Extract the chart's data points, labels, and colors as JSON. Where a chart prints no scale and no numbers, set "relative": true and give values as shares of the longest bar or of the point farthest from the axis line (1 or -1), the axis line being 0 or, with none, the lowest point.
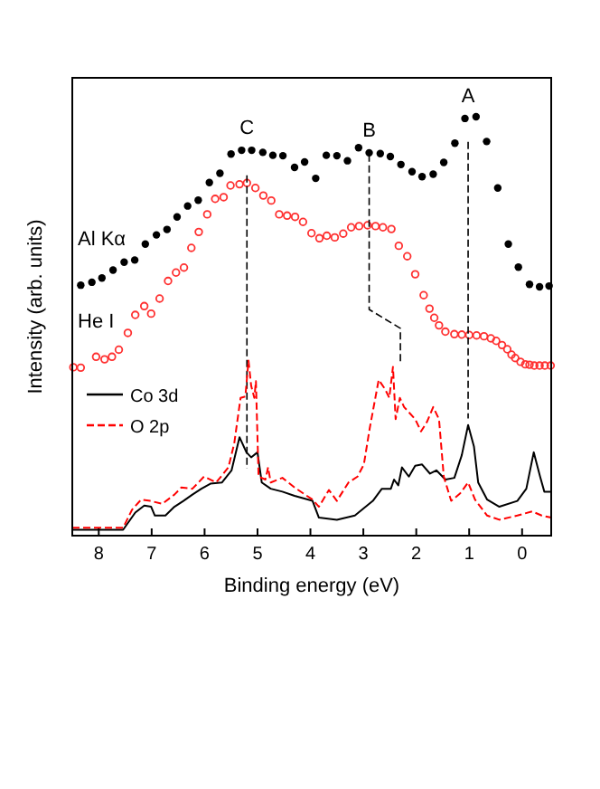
{
  "chart_data": {
    "type": "line",
    "relative": true,
    "xlabel": "Binding energy (eV)",
    "ylabel": "Intensity (arb. units)",
    "xlim": [
      8.5,
      -0.55
    ],
    "xticks": [
      8,
      7,
      6,
      5,
      4,
      3,
      2,
      1,
      0
    ],
    "legend": "left",
    "grid": false,
    "annotations": [
      "C",
      "B",
      "A"
    ],
    "series": [
      {
        "name": "Al Kα",
        "type": "scatter",
        "marker": "circle",
        "color": "#000000",
        "x": [
          8.34,
          8.13,
          7.94,
          7.73,
          7.52,
          7.32,
          7.12,
          6.91,
          6.71,
          6.52,
          6.32,
          6.12,
          5.91,
          5.71,
          5.5,
          5.3,
          5.11,
          4.9,
          4.71,
          4.52,
          4.3,
          4.11,
          3.9,
          3.7,
          3.5,
          3.3,
          3.09,
          2.89,
          2.68,
          2.49,
          2.29,
          2.08,
          1.89,
          1.68,
          1.48,
          1.27,
          1.08,
          0.87,
          0.67,
          0.46,
          0.26,
          0.07,
          -0.14,
          -0.33,
          -0.51
        ],
        "values": [
          0.598,
          0.605,
          0.615,
          0.634,
          0.653,
          0.658,
          0.696,
          0.718,
          0.731,
          0.761,
          0.787,
          0.801,
          0.843,
          0.865,
          0.911,
          0.92,
          0.92,
          0.915,
          0.908,
          0.907,
          0.879,
          0.892,
          0.853,
          0.908,
          0.907,
          0.895,
          0.926,
          0.914,
          0.912,
          0.905,
          0.886,
          0.869,
          0.857,
          0.863,
          0.891,
          0.937,
          0.996,
          1.0,
          0.941,
          0.83,
          0.696,
          0.641,
          0.6,
          0.594,
          0.596
        ]
      },
      {
        "name": "He I",
        "type": "scatter",
        "marker": "circle",
        "color": "#ff3030",
        "x": [
          8.48,
          8.34,
          8.05,
          7.89,
          7.75,
          7.62,
          7.45,
          7.31,
          7.14,
          7.01,
          6.85,
          6.69,
          6.54,
          6.39,
          6.25,
          6.11,
          5.95,
          5.8,
          5.64,
          5.51,
          5.34,
          5.2,
          5.04,
          4.89,
          4.74,
          4.59,
          4.44,
          4.29,
          4.14,
          3.98,
          3.83,
          3.69,
          3.54,
          3.38,
          3.23,
          3.08,
          2.92,
          2.77,
          2.63,
          2.47,
          2.33,
          2.17,
          2.02,
          1.86,
          1.75,
          1.66,
          1.57,
          1.45,
          1.28,
          1.14,
          1.0,
          0.86,
          0.72,
          0.59,
          0.49,
          0.38,
          0.28,
          0.2,
          0.13,
          0.03,
          -0.06,
          -0.14,
          -0.23,
          -0.33,
          -0.43,
          -0.54
        ],
        "values": [
          0.402,
          0.401,
          0.427,
          0.421,
          0.427,
          0.444,
          0.484,
          0.527,
          0.548,
          0.53,
          0.566,
          0.608,
          0.628,
          0.64,
          0.687,
          0.725,
          0.767,
          0.804,
          0.808,
          0.836,
          0.839,
          0.842,
          0.83,
          0.812,
          0.8,
          0.767,
          0.764,
          0.761,
          0.749,
          0.722,
          0.71,
          0.716,
          0.712,
          0.721,
          0.736,
          0.739,
          0.741,
          0.739,
          0.736,
          0.732,
          0.692,
          0.667,
          0.624,
          0.574,
          0.542,
          0.52,
          0.502,
          0.487,
          0.481,
          0.48,
          0.479,
          0.478,
          0.476,
          0.471,
          0.465,
          0.455,
          0.445,
          0.432,
          0.424,
          0.415,
          0.409,
          0.408,
          0.406,
          0.406,
          0.406,
          0.406
        ]
      },
      {
        "color": "#000000",
        "line_style": "dashed",
        "x": [
          5.2,
          5.2
        ],
        "values": [
          0.86,
          0.16
        ]
      },
      {
        "color": "#000000",
        "line_style": "dashed",
        "x": [
          2.89,
          2.89,
          2.3,
          2.3
        ],
        "values": [
          0.91,
          0.54,
          0.495,
          0.41
        ]
      },
      {
        "color": "#000000",
        "line_style": "dashed",
        "x": [
          1.02,
          1.02
        ],
        "values": [
          0.94,
          0.28
        ]
      },
      {
        "name": "Co 3d",
        "line_style": "solid",
        "color": "#000000",
        "x": [
          8.5,
          7.54,
          7.31,
          7.14,
          7.01,
          6.94,
          6.74,
          6.57,
          6.4,
          6.23,
          6.06,
          5.89,
          5.67,
          5.49,
          5.34,
          5.21,
          5.12,
          5.0,
          4.92,
          4.75,
          4.53,
          4.3,
          3.96,
          3.84,
          3.5,
          3.16,
          2.82,
          2.65,
          2.48,
          2.42,
          2.34,
          2.27,
          2.14,
          2.02,
          1.89,
          1.74,
          1.62,
          1.45,
          1.28,
          1.14,
          1.02,
          0.91,
          0.83,
          0.66,
          0.43,
          0.09,
          -0.08,
          -0.22,
          -0.34,
          -0.42,
          -0.55
        ],
        "values": [
          0.014,
          0.014,
          0.055,
          0.072,
          0.069,
          0.048,
          0.048,
          0.069,
          0.083,
          0.098,
          0.112,
          0.124,
          0.127,
          0.156,
          0.235,
          0.199,
          0.187,
          0.199,
          0.127,
          0.112,
          0.105,
          0.095,
          0.083,
          0.043,
          0.038,
          0.048,
          0.083,
          0.112,
          0.112,
          0.134,
          0.12,
          0.163,
          0.141,
          0.167,
          0.17,
          0.148,
          0.156,
          0.134,
          0.138,
          0.192,
          0.264,
          0.213,
          0.127,
          0.086,
          0.069,
          0.083,
          0.112,
          0.199,
          0.141,
          0.105,
          0.105
        ]
      },
      {
        "name": "O 2p",
        "line_style": "dashed",
        "color": "#ff0000",
        "x": [
          8.5,
          7.54,
          7.37,
          7.2,
          7.03,
          6.8,
          6.57,
          6.44,
          6.23,
          6.01,
          5.78,
          5.55,
          5.44,
          5.32,
          5.23,
          5.17,
          5.12,
          5.06,
          5.03,
          4.98,
          4.85,
          4.8,
          4.75,
          4.53,
          4.3,
          3.96,
          3.84,
          3.65,
          3.5,
          3.28,
          3.11,
          2.99,
          2.88,
          2.71,
          2.59,
          2.51,
          2.44,
          2.39,
          2.31,
          2.23,
          2.02,
          1.91,
          1.8,
          1.68,
          1.57,
          1.48,
          1.34,
          1.17,
          1.02,
          0.89,
          0.66,
          0.43,
          0.09,
          -0.19,
          -0.37,
          -0.55
        ],
        "values": [
          0.019,
          0.019,
          0.062,
          0.086,
          0.083,
          0.076,
          0.098,
          0.115,
          0.112,
          0.141,
          0.127,
          0.163,
          0.22,
          0.329,
          0.332,
          0.418,
          0.358,
          0.329,
          0.369,
          0.141,
          0.134,
          0.163,
          0.127,
          0.138,
          0.115,
          0.086,
          0.069,
          0.109,
          0.083,
          0.127,
          0.141,
          0.17,
          0.256,
          0.372,
          0.35,
          0.329,
          0.403,
          0.278,
          0.329,
          0.307,
          0.278,
          0.249,
          0.271,
          0.307,
          0.278,
          0.141,
          0.083,
          0.101,
          0.127,
          0.086,
          0.048,
          0.038,
          0.048,
          0.058,
          0.048,
          0.043
        ]
      }
    ]
  }
}
